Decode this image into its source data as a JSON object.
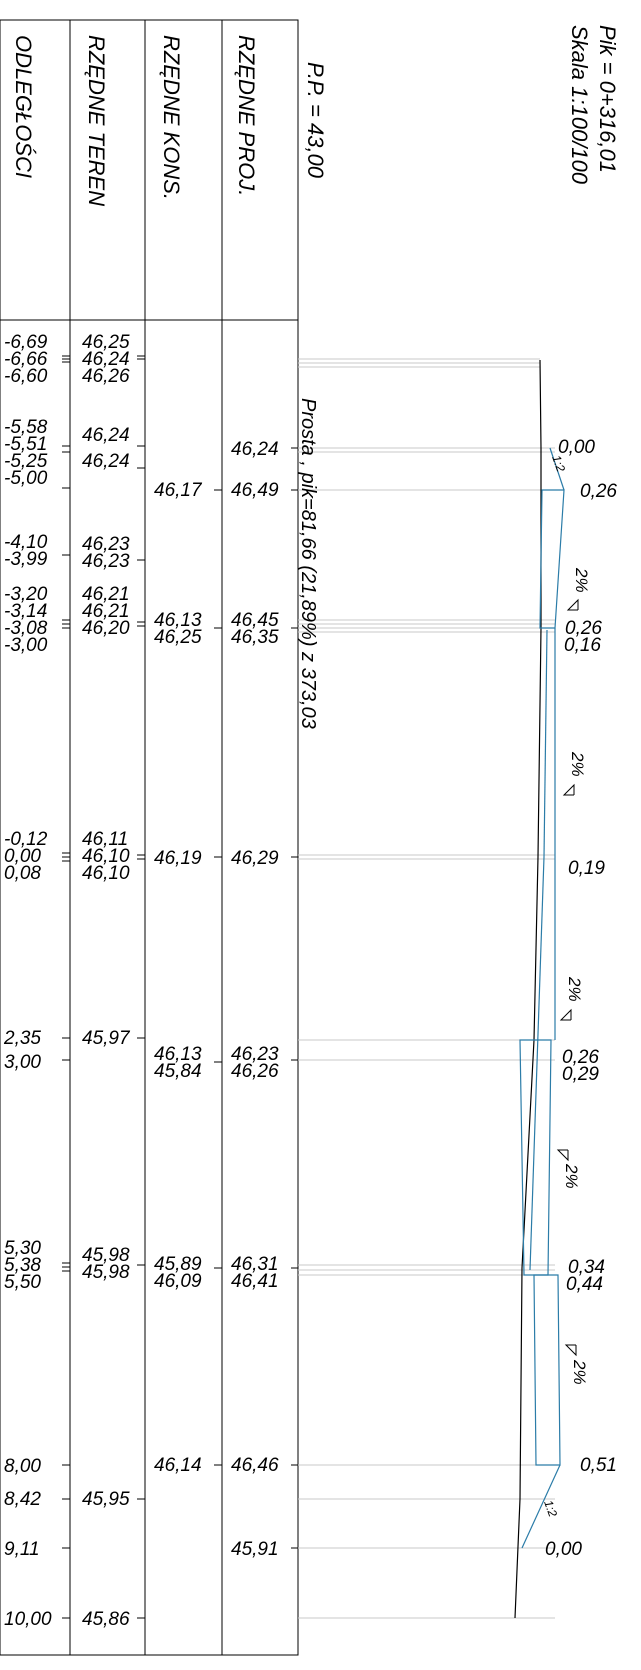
{
  "header": {
    "pik": "Pik = 0+316,01",
    "scale": "Skala 1:100/100",
    "pp": "P.P.  =  43,00"
  },
  "row_labels": {
    "proj": "RZĘDNE PROJ.",
    "kons": "RZĘDNE KONS.",
    "teren": "RZĘDNE TEREN",
    "odl": "ODLEGŁOŚCI"
  },
  "grade_line": "Prosta , pik=81,66 (21,89%) z 373,03",
  "distances": [
    "-6,69",
    "-6,66",
    "-6,60",
    "-5,58",
    "-5,51",
    "-5,25",
    "-5,00",
    "-4,10",
    "-3,99",
    "-3,20",
    "-3,14",
    "-3,08",
    "-3,00",
    "-0,12",
    "0,00",
    "0,08",
    "2,35",
    "3,00",
    "5,30",
    "5,38",
    "5,50",
    "8,00",
    "8,42",
    "9,11",
    "10,00"
  ],
  "terrain": [
    "46,25",
    "46,24",
    "46,26",
    "46,24",
    "46,24",
    "46,23",
    "46,23",
    "46,21",
    "46,21",
    "46,20",
    "46,11",
    "46,10",
    "46,10",
    "45,97",
    "45,98",
    "45,98",
    "45,95",
    "45,86"
  ],
  "construction": [
    "46,17",
    "46,13",
    "46,25",
    "46,19",
    "46,13",
    "45,84",
    "45,89",
    "46,09",
    "46,14"
  ],
  "design": [
    "46,24",
    "46,49",
    "46,45",
    "46,35",
    "46,29",
    "46,23",
    "46,26",
    "46,31",
    "46,41",
    "46,46",
    "45,91"
  ],
  "layer_thickness": [
    "0,00",
    "0,26",
    "0,26",
    "0,16",
    "0,19",
    "0,26",
    "0,29",
    "0,34",
    "0,44",
    "0,51",
    "0,00"
  ],
  "slopes": [
    "2%",
    "2%",
    "2%",
    "2%",
    "2%"
  ],
  "side_slopes": [
    "1:2",
    "1:2"
  ],
  "colors": {
    "outline": "#000000",
    "layer": "#2b7ca8",
    "guide": "#c8c8c8"
  }
}
